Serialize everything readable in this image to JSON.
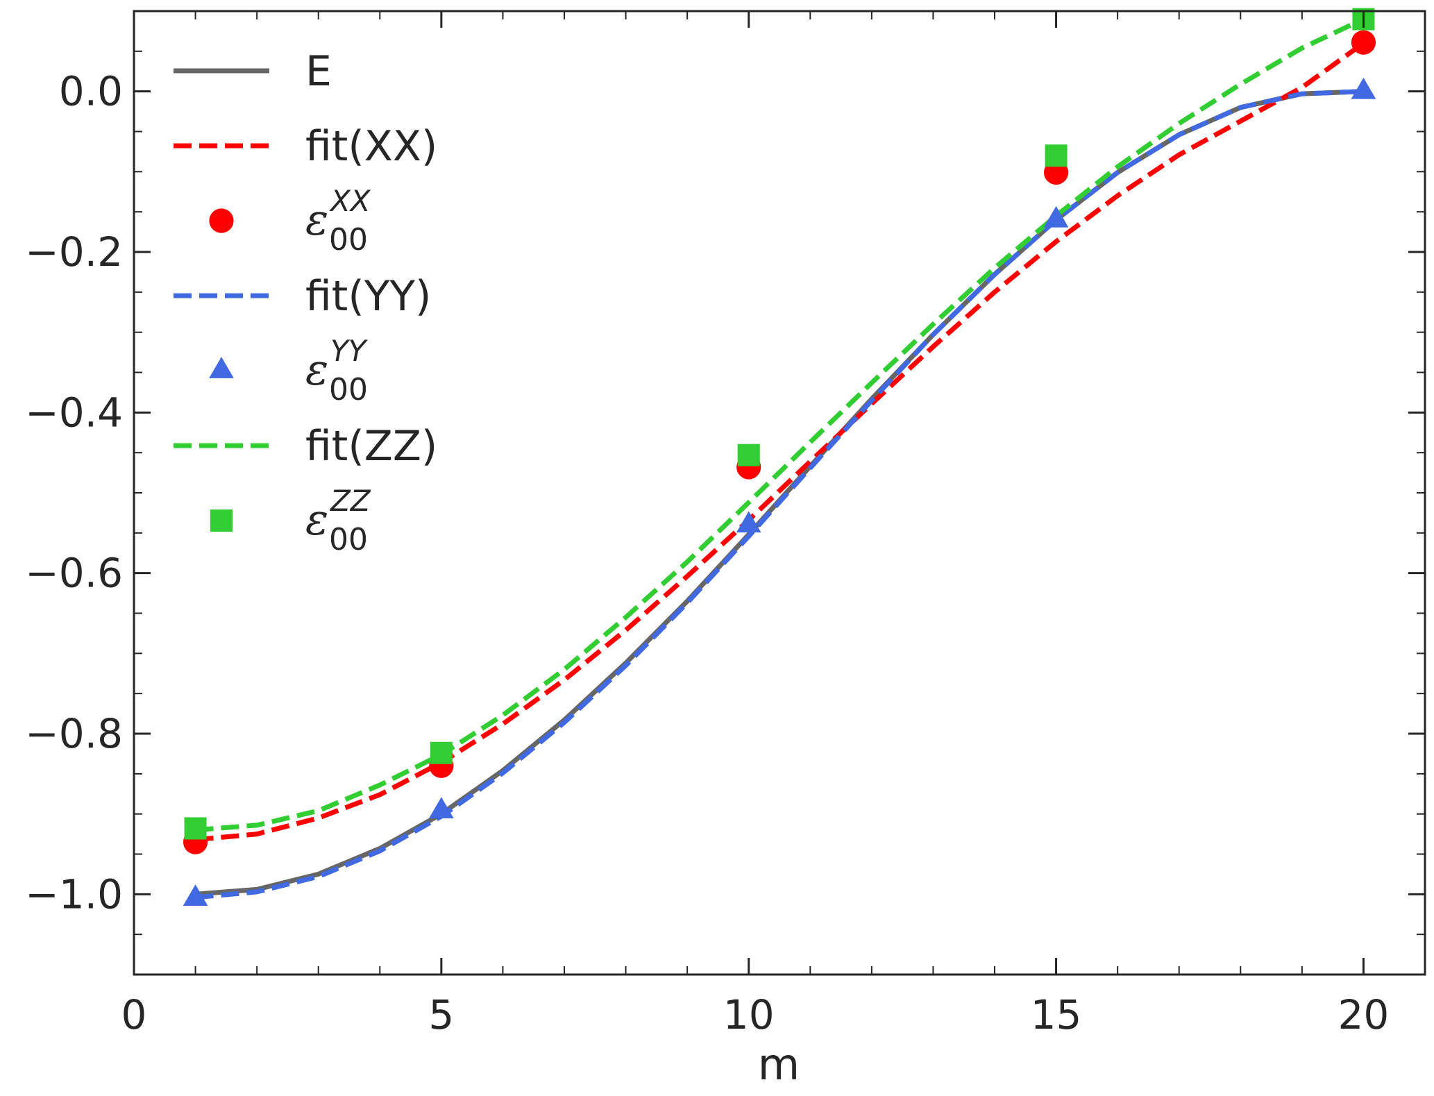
{
  "chart_data": {
    "type": "line",
    "title": "",
    "xlabel": "m",
    "ylabel": "",
    "xlim": [
      0,
      21
    ],
    "ylim": [
      -1.1,
      0.1
    ],
    "xticks": [
      0,
      5,
      10,
      15,
      20
    ],
    "xtick_labels": [
      "0",
      "5",
      "10",
      "15",
      "20"
    ],
    "yticks": [
      -1.0,
      -0.8,
      -0.6,
      -0.4,
      -0.2,
      0.0
    ],
    "ytick_labels": [
      "−1.0",
      "−0.8",
      "−0.6",
      "−0.4",
      "−0.2",
      "0.0"
    ],
    "x_minor_step": 1,
    "y_minor_step": 0.05,
    "legend_position": "upper-left",
    "x_points": [
      1,
      5,
      10,
      15,
      20
    ],
    "series": [
      {
        "name": "E",
        "kind": "line",
        "style": "solid",
        "color": "#666666",
        "x": [
          1,
          2,
          3,
          4,
          5,
          6,
          7,
          8,
          9,
          10,
          11,
          12,
          13,
          14,
          15,
          16,
          17,
          18,
          19,
          20
        ],
        "values": [
          -1.0,
          -0.994,
          -0.975,
          -0.943,
          -0.9,
          -0.846,
          -0.783,
          -0.712,
          -0.635,
          -0.552,
          -0.467,
          -0.383,
          -0.303,
          -0.228,
          -0.16,
          -0.101,
          -0.054,
          -0.02,
          -0.003,
          0.0
        ]
      },
      {
        "name": "fit(XX)",
        "kind": "line",
        "style": "dashed",
        "color": "#ff0000",
        "x": [
          1,
          2,
          3,
          4,
          5,
          6,
          7,
          8,
          9,
          10,
          11,
          12,
          13,
          14,
          15,
          16,
          17,
          18,
          19,
          20
        ],
        "values": [
          -0.932,
          -0.925,
          -0.905,
          -0.876,
          -0.836,
          -0.788,
          -0.733,
          -0.671,
          -0.604,
          -0.534,
          -0.461,
          -0.389,
          -0.318,
          -0.25,
          -0.187,
          -0.13,
          -0.079,
          -0.037,
          0.005,
          0.06
        ]
      },
      {
        "name": "ε_00^XX",
        "kind": "scatter",
        "marker": "circle",
        "color": "#ff0000",
        "x": [
          1,
          5,
          10,
          15,
          20
        ],
        "values": [
          -0.935,
          -0.84,
          -0.468,
          -0.101,
          0.061
        ]
      },
      {
        "name": "fit(YY)",
        "kind": "line",
        "style": "dashed",
        "color": "#4169e1",
        "x": [
          1,
          2,
          3,
          4,
          5,
          6,
          7,
          8,
          9,
          10,
          11,
          12,
          13,
          14,
          15,
          16,
          17,
          18,
          19,
          20
        ],
        "values": [
          -1.004,
          -0.997,
          -0.978,
          -0.946,
          -0.903,
          -0.849,
          -0.786,
          -0.715,
          -0.637,
          -0.554,
          -0.469,
          -0.385,
          -0.303,
          -0.228,
          -0.16,
          -0.101,
          -0.054,
          -0.02,
          -0.003,
          0.0
        ]
      },
      {
        "name": "ε_00^YY",
        "kind": "scatter",
        "marker": "triangle",
        "color": "#4169e1",
        "x": [
          1,
          5,
          10,
          15,
          20
        ],
        "values": [
          -1.005,
          -0.896,
          -0.54,
          -0.16,
          0.0
        ]
      },
      {
        "name": "fit(ZZ)",
        "kind": "line",
        "style": "dashed",
        "color": "#32cd32",
        "x": [
          1,
          2,
          3,
          4,
          5,
          6,
          7,
          8,
          9,
          10,
          11,
          12,
          13,
          14,
          15,
          16,
          17,
          18,
          19,
          20
        ],
        "values": [
          -0.92,
          -0.914,
          -0.896,
          -0.864,
          -0.826,
          -0.777,
          -0.72,
          -0.655,
          -0.586,
          -0.512,
          -0.437,
          -0.363,
          -0.29,
          -0.22,
          -0.155,
          -0.094,
          -0.04,
          0.009,
          0.054,
          0.09
        ]
      },
      {
        "name": "ε_00^ZZ",
        "kind": "scatter",
        "marker": "square",
        "color": "#32cd32",
        "x": [
          1,
          5,
          10,
          15,
          20
        ],
        "values": [
          -0.918,
          -0.824,
          -0.453,
          -0.08,
          0.09
        ]
      }
    ],
    "legend": [
      {
        "label": "E",
        "kind": "line",
        "style": "solid",
        "color": "#666666"
      },
      {
        "label": "fit(XX)",
        "kind": "line",
        "style": "dashed",
        "color": "#ff0000"
      },
      {
        "label": "ε",
        "sub": "00",
        "sup": "XX",
        "kind": "marker",
        "marker": "circle",
        "color": "#ff0000"
      },
      {
        "label": "fit(YY)",
        "kind": "line",
        "style": "dashed",
        "color": "#4169e1"
      },
      {
        "label": "ε",
        "sub": "00",
        "sup": "YY",
        "kind": "marker",
        "marker": "triangle",
        "color": "#4169e1"
      },
      {
        "label": "fit(ZZ)",
        "kind": "line",
        "style": "dashed",
        "color": "#32cd32"
      },
      {
        "label": "ε",
        "sub": "00",
        "sup": "ZZ",
        "kind": "marker",
        "marker": "square",
        "color": "#32cd32"
      }
    ]
  }
}
